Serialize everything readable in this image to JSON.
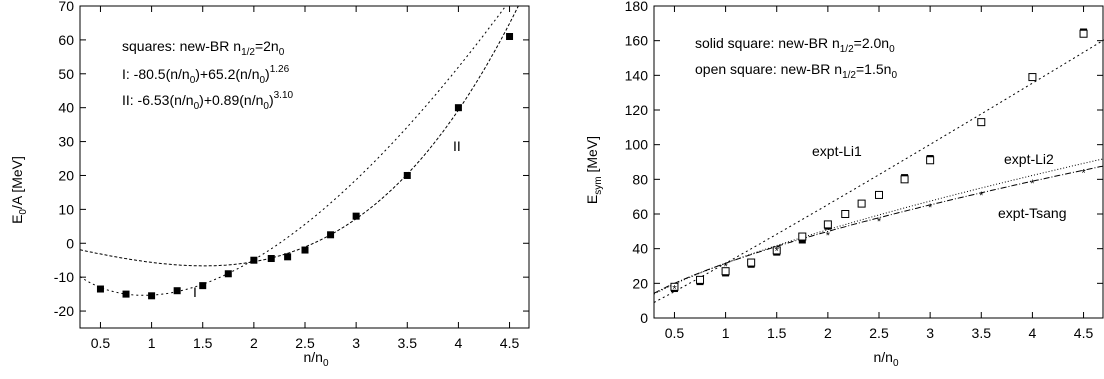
{
  "chart_data": [
    {
      "type": "scatter",
      "xlabel": "n/n",
      "xlabel_sub": "0",
      "ylabel": "E",
      "ylabel_sub": "0",
      "ylabel_tail": "/A  [MeV]",
      "xlim": [
        0.3,
        4.7
      ],
      "ylim": [
        -25,
        70
      ],
      "xticks": [
        "0.5",
        "1",
        "1.5",
        "2",
        "2.5",
        "3",
        "3.5",
        "4",
        "4.5"
      ],
      "yticks": [
        "-20",
        "-10",
        "0",
        "10",
        "20",
        "30",
        "40",
        "50",
        "60",
        "70"
      ],
      "annotations": {
        "line1_a": "squares: new-BR n",
        "line1_sub": "1/2",
        "line1_b": "=2n",
        "line1_sub2": "0",
        "line2_a": "I: -80.5(n/n",
        "line2_sub1": "0",
        "line2_b": ")+65.2(n/n",
        "line2_sub2": "0",
        "line2_c": ")",
        "line2_sup": "1.26",
        "line3_a": "II: -6.53(n/n",
        "line3_sub1": "0",
        "line3_b": ")+0.89(n/n",
        "line3_sub2": "0",
        "line3_c": ")",
        "line3_sup": "3.10",
        "curve_label_I": "I",
        "curve_label_II": "II"
      },
      "curves": [
        {
          "label": "I",
          "a": -80.5,
          "b": 65.2,
          "p": 1.26,
          "style": "dotted",
          "x_range": [
            0.3,
            4.7
          ]
        },
        {
          "label": "II",
          "a": -6.53,
          "b": 0.89,
          "p": 3.1,
          "style": "dashed",
          "x_range": [
            0.3,
            4.7
          ]
        }
      ],
      "series": [
        {
          "marker": "filled-square",
          "x": [
            0.5,
            0.75,
            1.0,
            1.25,
            1.5,
            1.75,
            2.0,
            2.17,
            2.33,
            2.5,
            2.75,
            3.0,
            3.5,
            4.0,
            4.5
          ],
          "y": [
            -13.5,
            -15,
            -15.5,
            -14,
            -12.5,
            -9,
            -5,
            -4.5,
            -4,
            -2,
            2.5,
            8,
            20,
            40,
            61
          ]
        }
      ]
    },
    {
      "type": "scatter",
      "xlabel": "n/n",
      "xlabel_sub": "0",
      "ylabel": "E",
      "ylabel_sub": "sym",
      "ylabel_tail": " [MeV]",
      "xlim": [
        0.3,
        4.7
      ],
      "ylim": [
        0,
        180
      ],
      "xticks": [
        "0.5",
        "1",
        "1.5",
        "2",
        "2.5",
        "3",
        "3.5",
        "4",
        "4.5"
      ],
      "yticks": [
        "0",
        "20",
        "40",
        "60",
        "80",
        "100",
        "120",
        "140",
        "160",
        "180"
      ],
      "annotations": {
        "line1_a": "solid square: new-BR n",
        "line1_sub": "1/2",
        "line1_b": "=2.0n",
        "line1_sub2": "0",
        "line2_a": "open square: new-BR n",
        "line2_sub": "1/2",
        "line2_b": "=1.5n",
        "line2_sub2": "0",
        "label_li1": "expt-Li1",
        "label_li2": "expt-Li2",
        "label_tsang": "expt-Tsang"
      },
      "curves": [
        {
          "label": "expt-Li1",
          "c": 31.6,
          "g": 1.05,
          "style": "dotted"
        },
        {
          "label": "expt-Li2",
          "c": 31.6,
          "g": 0.69,
          "style": "dotted-fine"
        },
        {
          "label": "expt-Tsang",
          "c": 31.6,
          "g": 0.66,
          "style": "dash-dot"
        }
      ],
      "series": [
        {
          "name": "solid square: new-BR n1/2=2.0n0",
          "marker": "filled-square",
          "x": [
            0.5,
            0.75,
            1.0,
            1.25,
            1.5,
            1.75,
            2.0,
            2.17,
            2.33,
            2.5,
            2.75,
            3.0,
            3.5,
            4.0,
            4.5
          ],
          "y": [
            17,
            21,
            26,
            31,
            38,
            45,
            53,
            60,
            66,
            71,
            81,
            92,
            113,
            139,
            165
          ]
        },
        {
          "name": "open square: new-BR n1/2=1.5n0",
          "marker": "open-square",
          "x": [
            0.5,
            0.75,
            1.0,
            1.25,
            1.5,
            1.75,
            2.0,
            2.17,
            2.33,
            2.5,
            2.75,
            3.0,
            3.5,
            4.0,
            4.5
          ],
          "y": [
            18,
            22,
            27,
            32,
            39,
            47,
            54,
            60,
            66,
            71,
            80,
            91,
            113,
            139,
            164
          ]
        },
        {
          "name": "expt-Tsang points",
          "marker": "star",
          "x": [
            0.5,
            1.0,
            1.5,
            2.0,
            2.5,
            3.0,
            3.5,
            4.0,
            4.5
          ],
          "y": [
            17,
            30,
            39,
            48,
            56,
            64,
            71,
            78,
            84
          ]
        }
      ]
    }
  ]
}
